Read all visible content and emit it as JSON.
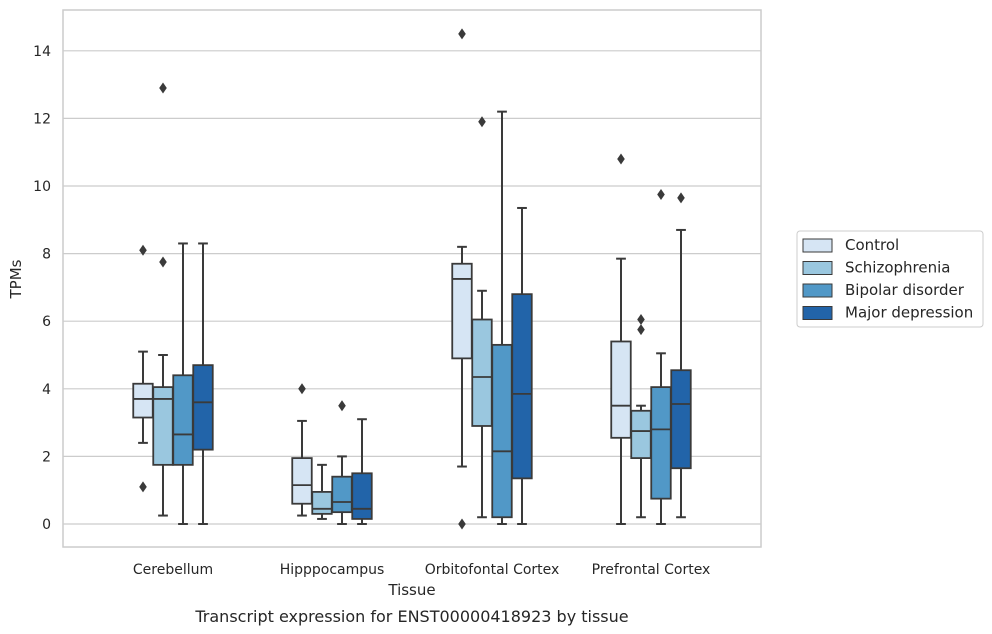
{
  "chart_data": {
    "type": "box",
    "caption": "Transcript expression for ENST00000418923 by tissue",
    "xlabel": "Tissue",
    "ylabel": "TPMs",
    "ylim": [
      -0.7,
      15.2
    ],
    "yticks": [
      0,
      2,
      4,
      6,
      8,
      10,
      12,
      14
    ],
    "grid": "horizontal",
    "legend_position": "right",
    "categories": [
      "Cerebellum",
      "Hipppocampus",
      "Orbitofontal Cortex",
      "Prefrontal Cortex"
    ],
    "series": [
      {
        "name": "Control",
        "color": "#d6e5f4",
        "boxes": [
          {
            "whisker_low": 2.4,
            "q1": 3.15,
            "median": 3.7,
            "q3": 4.15,
            "whisker_high": 5.1,
            "outliers": [
              8.1,
              1.1
            ]
          },
          {
            "whisker_low": 0.25,
            "q1": 0.6,
            "median": 1.15,
            "q3": 1.95,
            "whisker_high": 3.05,
            "outliers": [
              4.0
            ]
          },
          {
            "whisker_low": 1.7,
            "q1": 4.9,
            "median": 7.25,
            "q3": 7.7,
            "whisker_high": 8.2,
            "outliers": [
              14.5,
              0.0
            ]
          },
          {
            "whisker_low": 0.0,
            "q1": 2.55,
            "median": 3.5,
            "q3": 5.4,
            "whisker_high": 7.85,
            "outliers": [
              10.8
            ]
          }
        ]
      },
      {
        "name": "Schizophrenia",
        "color": "#9ac7df",
        "boxes": [
          {
            "whisker_low": 0.25,
            "q1": 1.75,
            "median": 3.7,
            "q3": 4.05,
            "whisker_high": 5.0,
            "outliers": [
              12.9,
              7.75
            ]
          },
          {
            "whisker_low": 0.15,
            "q1": 0.3,
            "median": 0.45,
            "q3": 0.95,
            "whisker_high": 1.75,
            "outliers": []
          },
          {
            "whisker_low": 0.2,
            "q1": 2.9,
            "median": 4.35,
            "q3": 6.05,
            "whisker_high": 6.9,
            "outliers": [
              11.9
            ]
          },
          {
            "whisker_low": 0.2,
            "q1": 1.95,
            "median": 2.75,
            "q3": 3.35,
            "whisker_high": 3.5,
            "outliers": [
              6.05,
              5.75
            ]
          }
        ]
      },
      {
        "name": "Bipolar disorder",
        "color": "#5198c7",
        "boxes": [
          {
            "whisker_low": 0.0,
            "q1": 1.75,
            "median": 2.65,
            "q3": 4.4,
            "whisker_high": 8.3,
            "outliers": []
          },
          {
            "whisker_low": 0.0,
            "q1": 0.35,
            "median": 0.65,
            "q3": 1.4,
            "whisker_high": 2.0,
            "outliers": [
              3.5
            ]
          },
          {
            "whisker_low": 0.0,
            "q1": 0.2,
            "median": 2.15,
            "q3": 5.3,
            "whisker_high": 12.2,
            "outliers": []
          },
          {
            "whisker_low": 0.0,
            "q1": 0.75,
            "median": 2.8,
            "q3": 4.05,
            "whisker_high": 5.05,
            "outliers": [
              9.75
            ]
          }
        ]
      },
      {
        "name": "Major depression",
        "color": "#2264a9",
        "boxes": [
          {
            "whisker_low": 0.0,
            "q1": 2.2,
            "median": 3.6,
            "q3": 4.7,
            "whisker_high": 8.3,
            "outliers": []
          },
          {
            "whisker_low": 0.0,
            "q1": 0.15,
            "median": 0.45,
            "q3": 1.5,
            "whisker_high": 3.1,
            "outliers": []
          },
          {
            "whisker_low": 0.0,
            "q1": 1.35,
            "median": 3.85,
            "q3": 6.8,
            "whisker_high": 9.35,
            "outliers": []
          },
          {
            "whisker_low": 0.2,
            "q1": 1.65,
            "median": 3.55,
            "q3": 4.55,
            "whisker_high": 8.7,
            "outliers": [
              9.65
            ]
          }
        ]
      }
    ]
  }
}
